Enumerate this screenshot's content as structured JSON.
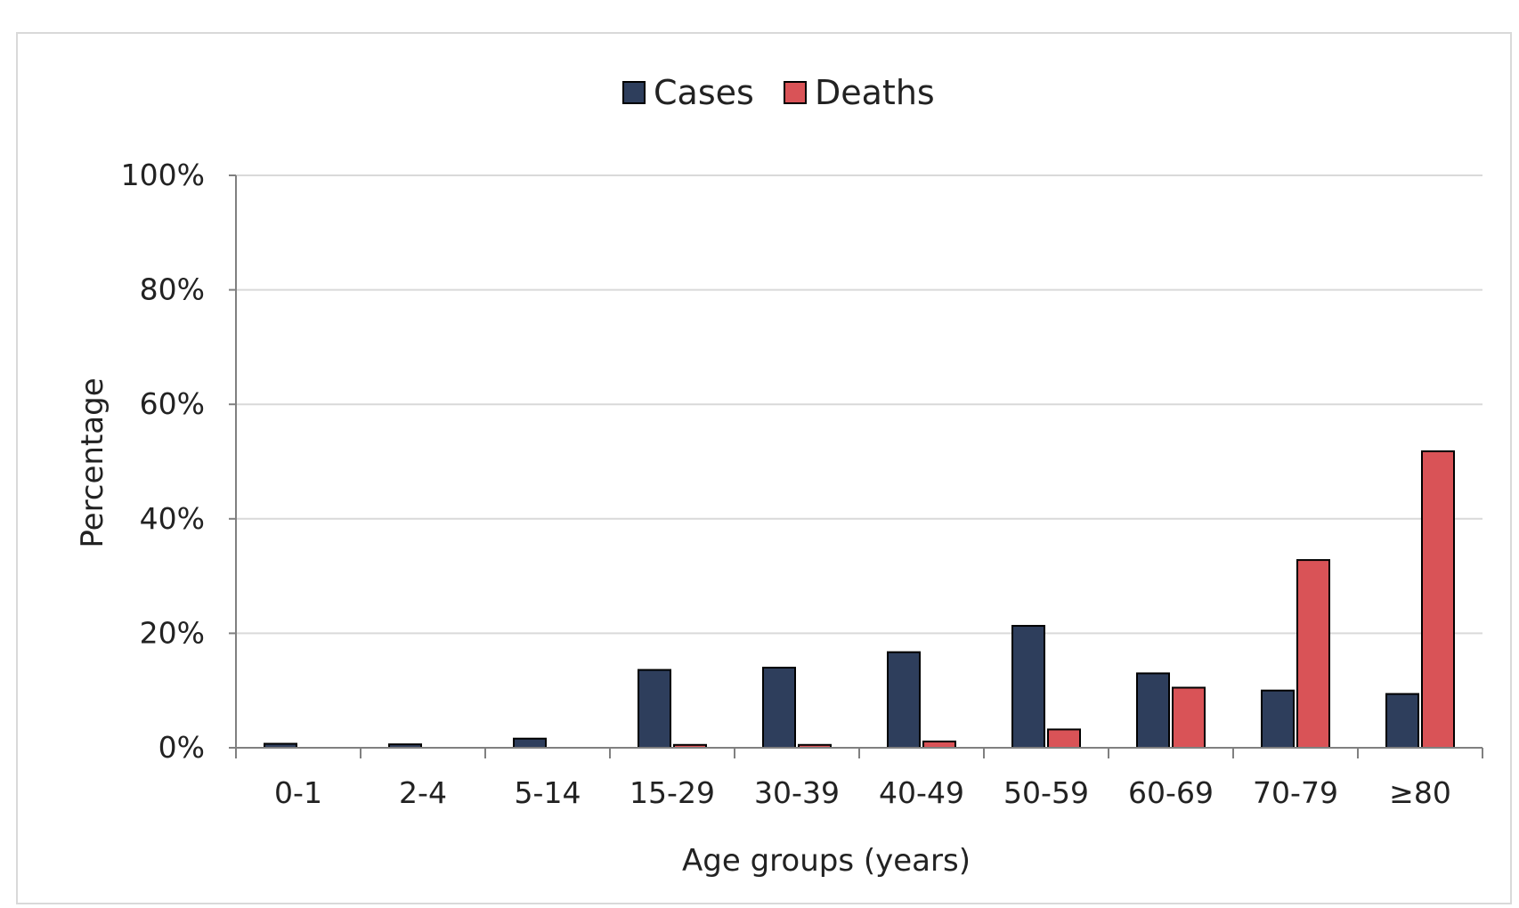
{
  "chart_data": {
    "type": "bar",
    "title": "",
    "xlabel": "Age  groups (years)",
    "ylabel": "Percentage",
    "ylim": [
      0,
      100
    ],
    "yticks": [
      "0%",
      "20%",
      "40%",
      "60%",
      "80%",
      "100%"
    ],
    "grid": true,
    "legend_position": "top",
    "categories": [
      "0-1",
      "2-4",
      "5-14",
      "15-29",
      "30-39",
      "40-49",
      "50-59",
      "60-69",
      "70-79",
      "≥80"
    ],
    "series": [
      {
        "name": "Cases",
        "color": "#2e3e5c",
        "values": [
          0.7,
          0.6,
          1.6,
          13.6,
          14.0,
          16.7,
          21.3,
          13.0,
          10.0,
          9.4
        ]
      },
      {
        "name": "Deaths",
        "color": "#d95357",
        "values": [
          0,
          0,
          0,
          0.5,
          0.5,
          1.1,
          3.2,
          10.5,
          32.8,
          51.8
        ]
      }
    ]
  }
}
